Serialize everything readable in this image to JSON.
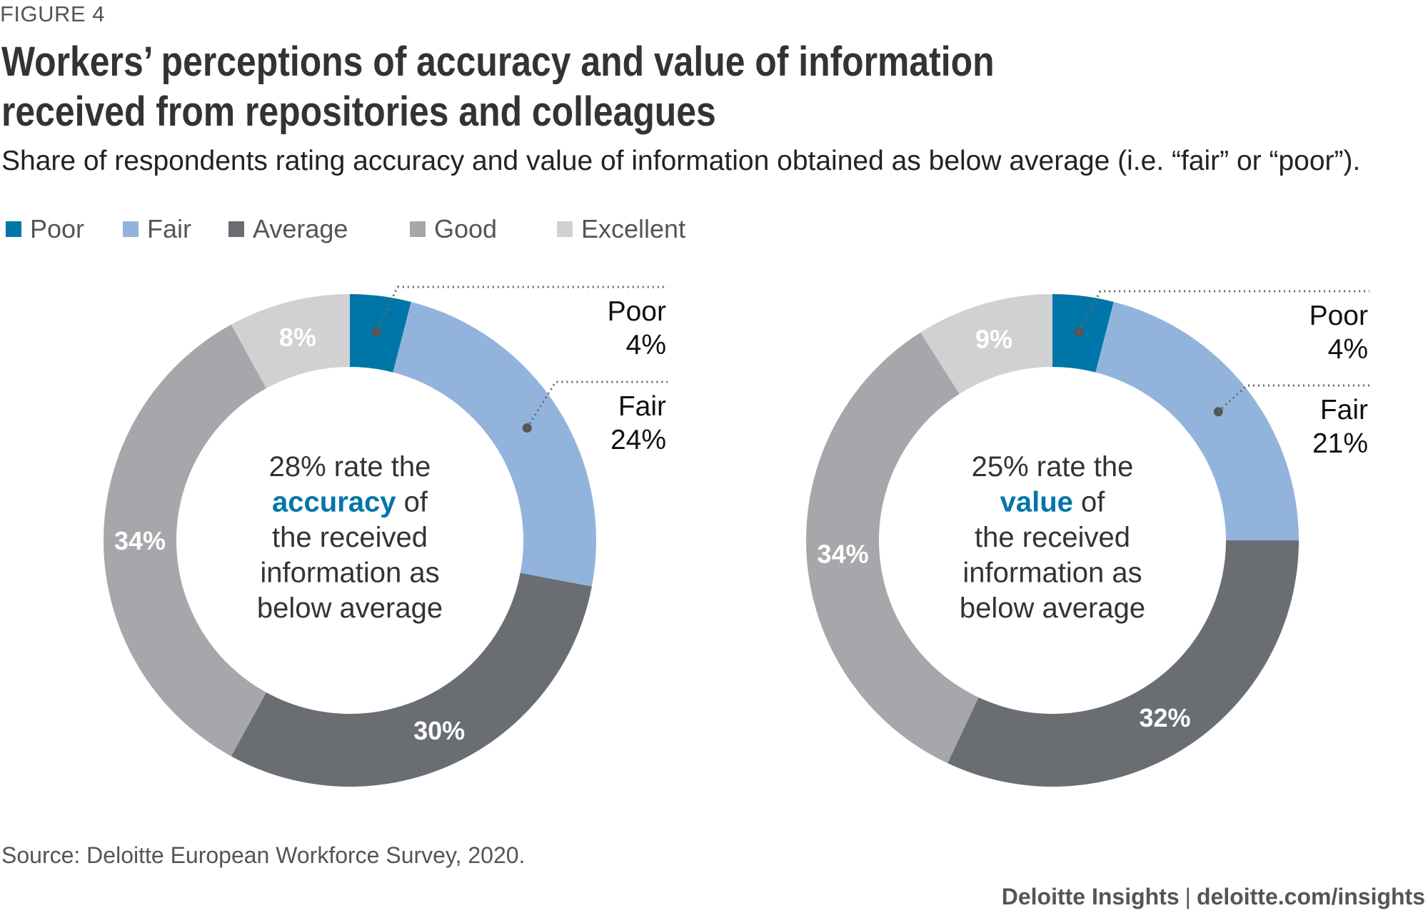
{
  "figure_label": "FIGURE 4",
  "title": "Workers’ perceptions of accuracy and value of information received from repositories and colleagues",
  "subtitle": "Share of respondents rating accuracy and value of information obtained as below average (i.e. “fair” or “poor”).",
  "legend": [
    {
      "label": "Poor",
      "color": "#0076A8"
    },
    {
      "label": "Fair",
      "color": "#92B4DC"
    },
    {
      "label": "Average",
      "color": "#6A6E73"
    },
    {
      "label": "Good",
      "color": "#A6A7AA"
    },
    {
      "label": "Excellent",
      "color": "#D0D1D3"
    }
  ],
  "chart_data": [
    {
      "type": "pie",
      "variant": "donut",
      "categories": [
        "Poor",
        "Fair",
        "Average",
        "Good",
        "Excellent"
      ],
      "values": [
        4,
        24,
        30,
        34,
        8
      ],
      "value_labels": [
        "4%",
        "24%",
        "30%",
        "34%",
        "8%"
      ],
      "colors": [
        "#0076A8",
        "#92B4DC",
        "#6A6E73",
        "#A6A7AA",
        "#D0D1D3"
      ],
      "callouts": [
        {
          "category": "Poor",
          "label": "Poor",
          "value": "4%"
        },
        {
          "category": "Fair",
          "label": "Fair",
          "value": "24%"
        }
      ],
      "center_text": {
        "before": "28% rate the",
        "highlight": "accuracy",
        "after": "of",
        "lines": [
          "the received",
          "information as",
          "below average"
        ]
      },
      "legend_position": "top-left"
    },
    {
      "type": "pie",
      "variant": "donut",
      "categories": [
        "Poor",
        "Fair",
        "Average",
        "Good",
        "Excellent"
      ],
      "values": [
        4,
        21,
        32,
        34,
        9
      ],
      "value_labels": [
        "4%",
        "21%",
        "32%",
        "34%",
        "9%"
      ],
      "colors": [
        "#0076A8",
        "#92B4DC",
        "#6A6E73",
        "#A6A7AA",
        "#D0D1D3"
      ],
      "callouts": [
        {
          "category": "Poor",
          "label": "Poor",
          "value": "4%"
        },
        {
          "category": "Fair",
          "label": "Fair",
          "value": "21%"
        }
      ],
      "center_text": {
        "before": "25% rate the",
        "highlight": "value",
        "after": "of",
        "lines": [
          "the received",
          "information as",
          "below average"
        ]
      },
      "legend_position": "top-left"
    }
  ],
  "highlight_color": "#0076A8",
  "source": "Source: Deloitte European Workforce Survey, 2020.",
  "brand": {
    "name": "Deloitte Insights",
    "separator": "|",
    "url": "deloitte.com/insights"
  }
}
